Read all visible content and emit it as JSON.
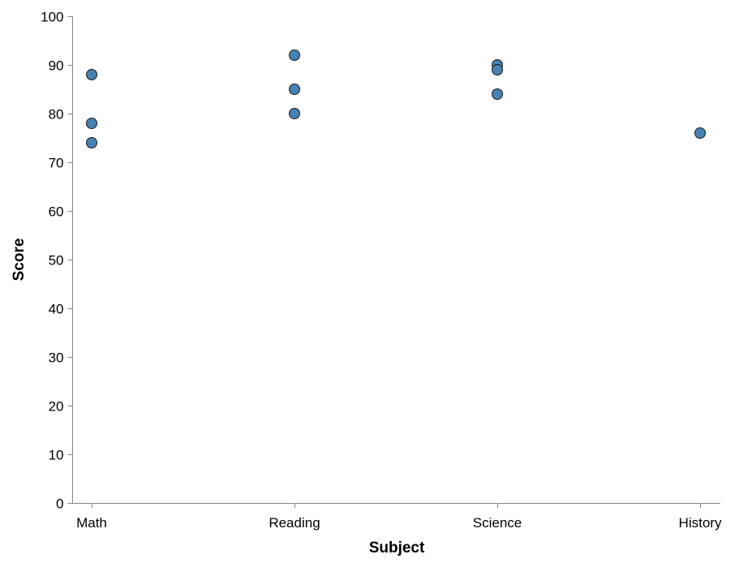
{
  "chart_data": {
    "type": "scatter",
    "title": "",
    "xlabel": "Subject",
    "ylabel": "Score",
    "categories": [
      "Math",
      "Reading",
      "Science",
      "History"
    ],
    "ylim": [
      0,
      100
    ],
    "yticks": [
      0,
      10,
      20,
      30,
      40,
      50,
      60,
      70,
      80,
      90,
      100
    ],
    "grid": false,
    "legend": "none",
    "point_color": "#4682b4",
    "points": [
      {
        "x": "Math",
        "y": 88
      },
      {
        "x": "Math",
        "y": 78
      },
      {
        "x": "Math",
        "y": 74
      },
      {
        "x": "Reading",
        "y": 92
      },
      {
        "x": "Reading",
        "y": 85
      },
      {
        "x": "Reading",
        "y": 80
      },
      {
        "x": "Science",
        "y": 90
      },
      {
        "x": "Science",
        "y": 89
      },
      {
        "x": "Science",
        "y": 84
      },
      {
        "x": "History",
        "y": 76
      }
    ]
  }
}
